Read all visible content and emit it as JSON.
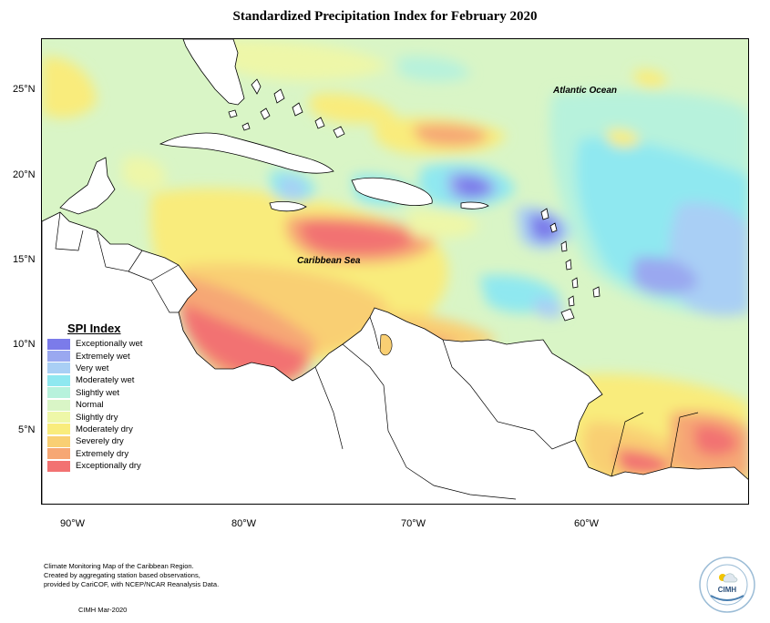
{
  "title": "Standardized Precipitation Index for February 2020",
  "lat_ticks": [
    "25°N",
    "20°N",
    "15°N",
    "10°N",
    "5°N"
  ],
  "lon_ticks": [
    "90°W",
    "80°W",
    "70°W",
    "60°W"
  ],
  "labels": {
    "atlantic": "Atlantic Ocean",
    "caribbean": "Caribbean Sea"
  },
  "legend": {
    "title": "SPI Index",
    "items": [
      {
        "label": "Exceptionally wet",
        "color": "#7b7bea"
      },
      {
        "label": "Extremely wet",
        "color": "#9aa8f0"
      },
      {
        "label": "Very wet",
        "color": "#a9cff5"
      },
      {
        "label": "Moderately wet",
        "color": "#8fe8f0"
      },
      {
        "label": "Slightly wet",
        "color": "#b7f2dc"
      },
      {
        "label": "Normal",
        "color": "#d9f5c6"
      },
      {
        "label": "Slightly dry",
        "color": "#eef7a8"
      },
      {
        "label": "Moderately dry",
        "color": "#f9ec7c"
      },
      {
        "label": "Severely dry",
        "color": "#f9cf73"
      },
      {
        "label": "Extremely dry",
        "color": "#f6a774"
      },
      {
        "label": "Exceptionally dry",
        "color": "#f27272"
      }
    ]
  },
  "footer": {
    "lines": [
      "Climate Monitoring Map of the Caribbean Region.",
      "Created by aggregating station based observations,",
      "provided by CariCOF, with NCEP/NCAR Reanalysis Data."
    ],
    "date": "CIMH Mar-2020"
  },
  "logo": {
    "text": "CIMH"
  }
}
